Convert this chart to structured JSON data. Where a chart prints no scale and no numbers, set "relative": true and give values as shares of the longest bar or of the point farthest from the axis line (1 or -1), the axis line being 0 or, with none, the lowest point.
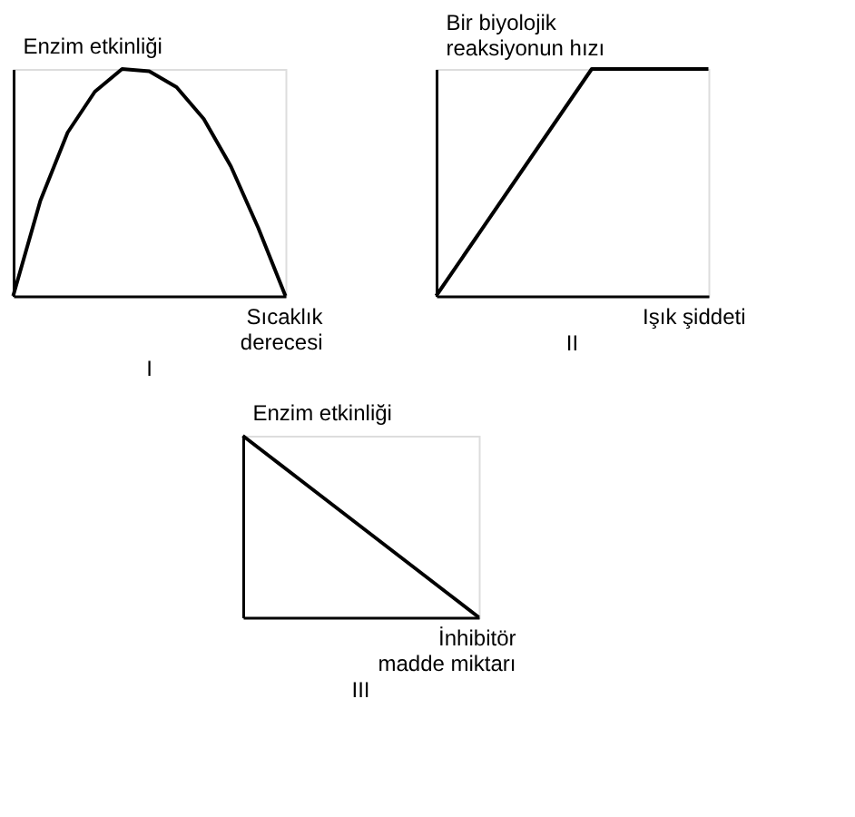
{
  "chart_data": [
    {
      "type": "line",
      "title": "I",
      "ylabel": "Enzim etkinliği",
      "xlabel": "Sıcaklık\nderecesi",
      "relative": true,
      "categories": [
        null,
        null,
        null,
        null,
        null,
        null,
        null,
        null,
        null,
        null,
        null
      ],
      "series": [
        {
          "color": "#000000",
          "values": [
            0,
            0.42,
            0.72,
            0.9,
            1,
            0.99,
            0.92,
            0.78,
            0.57,
            0.3,
            0
          ]
        }
      ]
    },
    {
      "type": "line",
      "title": "II",
      "ylabel": "Bir biyolojik\nreaksiyonun hızı",
      "xlabel": "Işık şiddeti",
      "relative": true,
      "categories": [
        null,
        null,
        null,
        null,
        null,
        null,
        null,
        null
      ],
      "series": [
        {
          "color": "#000000",
          "values": [
            0,
            0.25,
            0.5,
            0.75,
            1,
            1,
            1,
            1
          ]
        }
      ]
    },
    {
      "type": "line",
      "title": "III",
      "ylabel": "Enzim etkinliği",
      "xlabel": "İnhibitör\nmadde miktarı",
      "relative": true,
      "categories": [
        null,
        null,
        null,
        null,
        null,
        null,
        null,
        null,
        null
      ],
      "series": [
        {
          "color": "#000000",
          "values": [
            1,
            0.875,
            0.75,
            0.625,
            0.5,
            0.375,
            0.25,
            0.125,
            0
          ]
        }
      ]
    }
  ]
}
